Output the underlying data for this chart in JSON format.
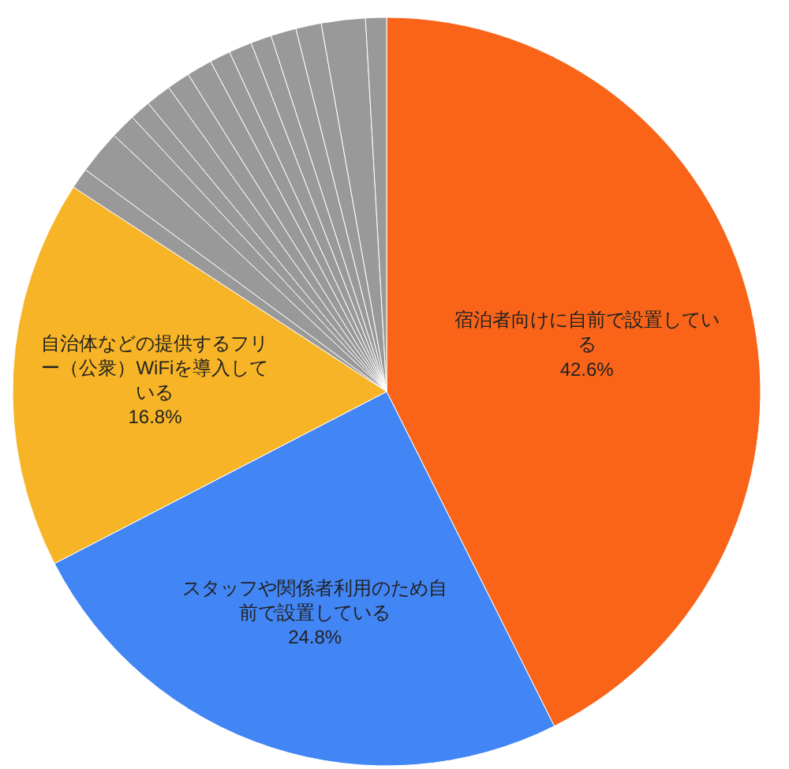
{
  "chart_data": {
    "type": "pie",
    "categories": [
      "宿泊者向けに自前で設置している",
      "スタッフや関係者利用のため自前で設置している",
      "自治体などの提供するフリー（公衆）WiFiを導入している",
      null,
      null,
      null,
      null,
      null,
      null,
      null,
      null,
      null,
      null,
      null,
      null,
      null,
      null
    ],
    "values": [
      42.6,
      24.8,
      16.8,
      0.9,
      1.9,
      1.1,
      0.9,
      1.1,
      1.0,
      1.1,
      0.9,
      1.0,
      0.9,
      1.1,
      1.1,
      1.9,
      0.9
    ],
    "colors": [
      "#f96419",
      "#4285f4",
      "#f6b426",
      "#999999",
      "#999999",
      "#999999",
      "#999999",
      "#999999",
      "#999999",
      "#999999",
      "#999999",
      "#999999",
      "#999999",
      "#999999",
      "#999999",
      "#999999",
      "#999999"
    ],
    "value_labels": [
      "42.6%",
      "24.8%",
      "16.8%",
      null,
      null,
      null,
      null,
      null,
      null,
      null,
      null,
      null,
      null,
      null,
      null,
      null,
      null
    ]
  }
}
